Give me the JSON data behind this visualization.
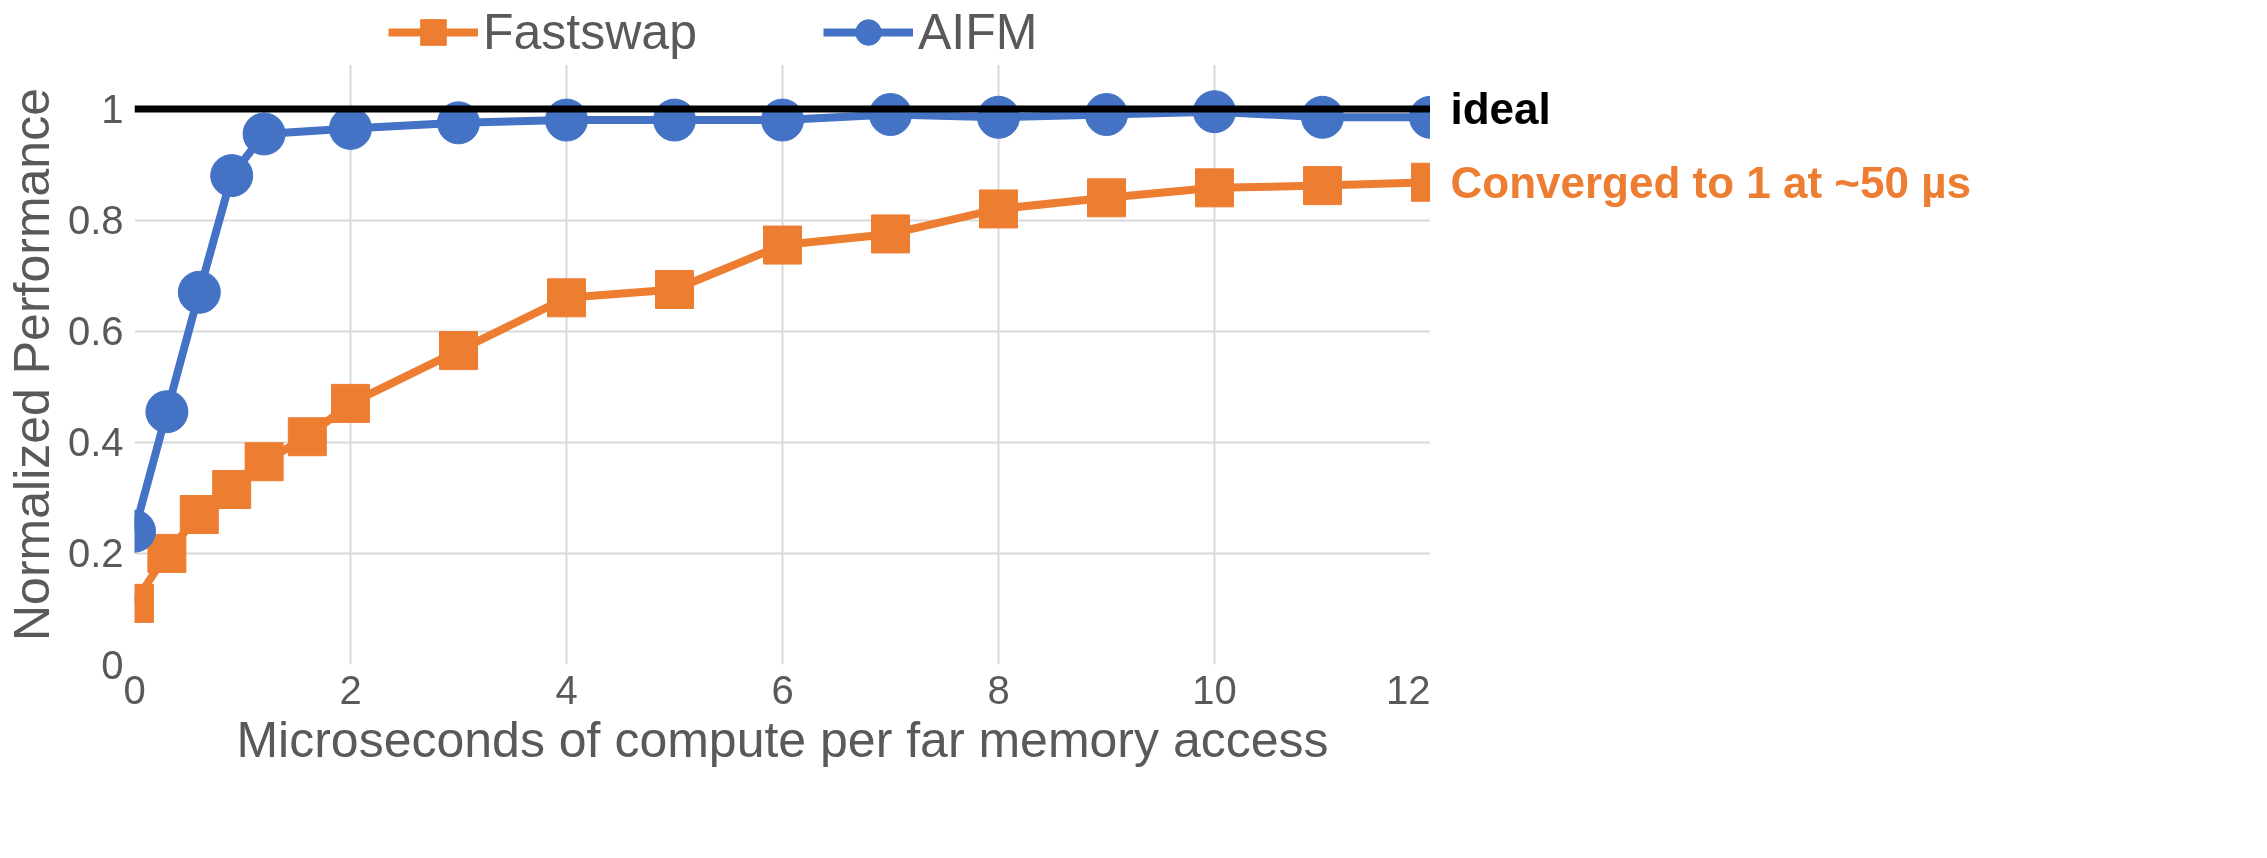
{
  "chart_data": {
    "type": "line",
    "xlabel": "Microseconds of compute per far memory access",
    "ylabel": "Normalized Performance",
    "xlim": [
      0,
      12
    ],
    "ylim": [
      0,
      1.08
    ],
    "xticks": [
      0,
      2,
      4,
      6,
      8,
      10,
      12
    ],
    "yticks": [
      0,
      0.2,
      0.4,
      0.6,
      0.8,
      1
    ],
    "grid": true,
    "legend": "top",
    "line_style": "solid",
    "series": [
      {
        "name": "Fastswap",
        "color": "#ed7d31",
        "marker": "square",
        "x": [
          0,
          0.3,
          0.6,
          0.9,
          1.2,
          1.6,
          2,
          3,
          4,
          5,
          6,
          7,
          8,
          9,
          10,
          11,
          12
        ],
        "values": [
          0.11,
          0.2,
          0.27,
          0.315,
          0.365,
          0.41,
          0.47,
          0.565,
          0.66,
          0.675,
          0.755,
          0.775,
          0.82,
          0.84,
          0.858,
          0.862,
          0.868
        ]
      },
      {
        "name": "AIFM",
        "color": "#4472c4",
        "marker": "circle",
        "x": [
          0,
          0.3,
          0.6,
          0.9,
          1.2,
          2,
          3,
          4,
          5,
          6,
          7,
          8,
          9,
          10,
          11,
          12
        ],
        "values": [
          0.24,
          0.455,
          0.67,
          0.88,
          0.955,
          0.965,
          0.975,
          0.98,
          0.98,
          0.98,
          0.99,
          0.985,
          0.99,
          0.995,
          0.985,
          0.985
        ]
      }
    ],
    "ref_lines": [
      {
        "axis": "y",
        "value": 1,
        "label": "ideal",
        "color": "#000000"
      }
    ],
    "annotations": [
      {
        "text": "Converged to 1 at ~50 µs",
        "x": 12,
        "y": 0.868
      }
    ]
  }
}
